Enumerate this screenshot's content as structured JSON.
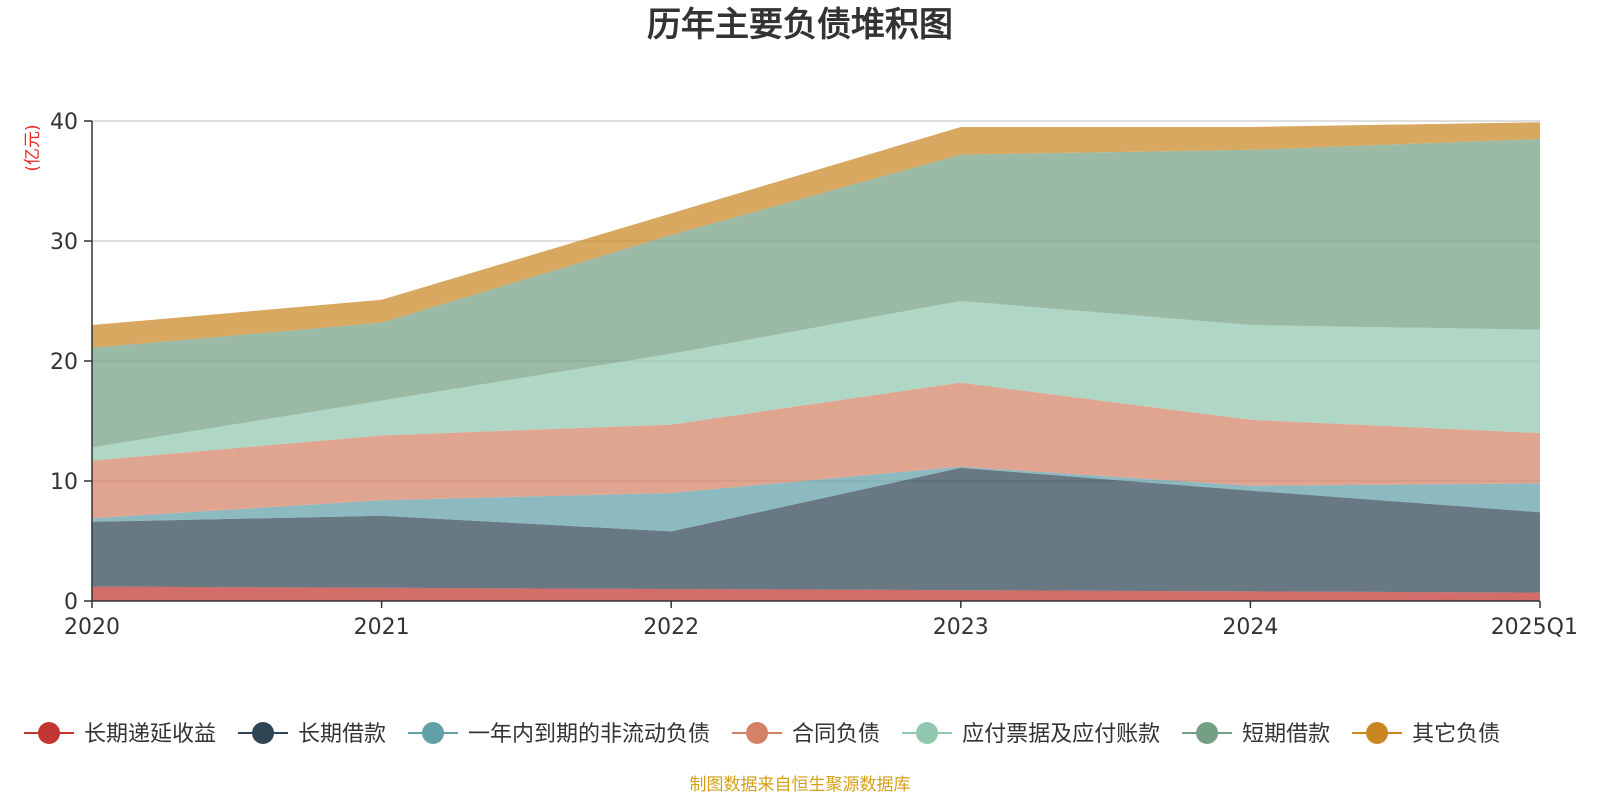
{
  "chart_data": {
    "type": "area",
    "stacked": true,
    "title": "历年主要负债堆积图",
    "unit_label": "(亿元)",
    "categories": [
      "2020",
      "2021",
      "2022",
      "2023",
      "2024",
      "2025Q1"
    ],
    "ylim": [
      0,
      40
    ],
    "yticks": [
      "0",
      "10",
      "20",
      "30",
      "40"
    ],
    "grid": true,
    "legend_position": "bottom",
    "series": [
      {
        "name": "长期递延收益",
        "color": "#c23531",
        "values": [
          1.2,
          1.1,
          1.0,
          0.9,
          0.8,
          0.7
        ]
      },
      {
        "name": "长期借款",
        "color": "#2f4554",
        "values": [
          5.4,
          6.0,
          4.8,
          10.2,
          8.4,
          6.7
        ]
      },
      {
        "name": "一年内到期的非流动负债",
        "color": "#61a0a8",
        "values": [
          0.3,
          1.3,
          3.2,
          0.1,
          0.4,
          2.4
        ]
      },
      {
        "name": "合同负债",
        "color": "#d48265",
        "values": [
          4.8,
          5.4,
          5.7,
          7.0,
          5.5,
          4.2
        ]
      },
      {
        "name": "应付票据及应付账款",
        "color": "#91c7ae",
        "values": [
          1.1,
          2.9,
          5.9,
          6.8,
          7.9,
          8.6
        ]
      },
      {
        "name": "短期借款",
        "color": "#749f83",
        "values": [
          8.3,
          6.5,
          9.9,
          12.2,
          14.6,
          15.9
        ]
      },
      {
        "name": "其它负债",
        "color": "#ca8622",
        "values": [
          1.9,
          1.9,
          1.8,
          2.3,
          1.9,
          1.4
        ]
      }
    ]
  },
  "footer": {
    "source_text": "制图数据来自恒生聚源数据库"
  }
}
